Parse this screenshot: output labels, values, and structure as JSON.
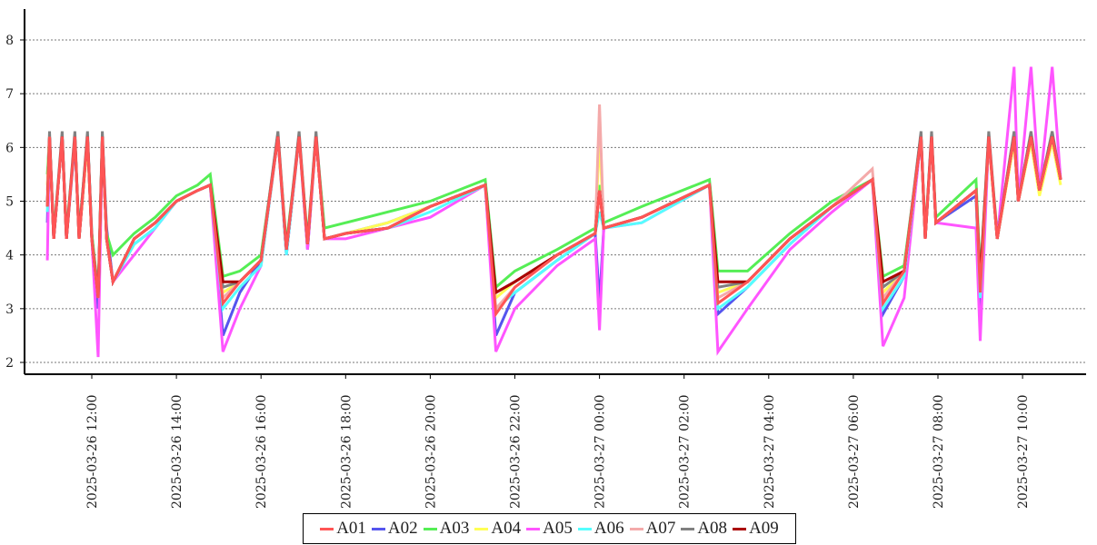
{
  "chart_data": {
    "type": "line",
    "title": "",
    "xlabel": "",
    "ylabel": "",
    "ylim": [
      1.8,
      8.6
    ],
    "yticks": [
      2,
      3,
      4,
      5,
      6,
      7,
      8
    ],
    "grid": "horizontal dotted",
    "legend_placement": "bottom-center",
    "x_unit": "hours since 2025-03-26 00:00",
    "xticks": [
      {
        "h": 12,
        "label": "2025-03-26 12:00"
      },
      {
        "h": 14,
        "label": "2025-03-26 14:00"
      },
      {
        "h": 16,
        "label": "2025-03-26 16:00"
      },
      {
        "h": 18,
        "label": "2025-03-26 18:00"
      },
      {
        "h": 20,
        "label": "2025-03-26 20:00"
      },
      {
        "h": 22,
        "label": "2025-03-26 22:00"
      },
      {
        "h": 24,
        "label": "2025-03-27 00:00"
      },
      {
        "h": 26,
        "label": "2025-03-27 02:00"
      },
      {
        "h": 28,
        "label": "2025-03-27 04:00"
      },
      {
        "h": 30,
        "label": "2025-03-27 06:00"
      },
      {
        "h": 32,
        "label": "2025-03-27 08:00"
      },
      {
        "h": 34,
        "label": "2025-03-27 10:00"
      }
    ],
    "x": [
      10.95,
      11.0,
      11.1,
      11.3,
      11.4,
      11.6,
      11.7,
      11.9,
      12.0,
      12.15,
      12.25,
      12.35,
      12.5,
      13.0,
      13.5,
      14.0,
      14.5,
      14.8,
      15.1,
      15.5,
      16.0,
      16.4,
      16.6,
      16.9,
      17.1,
      17.3,
      17.5,
      18.0,
      19.0,
      20.0,
      21.3,
      21.55,
      22.0,
      23.0,
      23.9,
      24.0,
      24.1,
      25.0,
      26.6,
      26.8,
      27.5,
      28.5,
      29.5,
      30.45,
      30.7,
      31.2,
      31.6,
      31.7,
      31.85,
      31.95,
      32.9,
      33.0,
      33.2,
      33.4,
      33.8,
      33.9,
      34.2,
      34.4,
      34.7,
      34.9
    ],
    "series": [
      {
        "name": "A02",
        "color": "#5555ee",
        "values": [
          4.6,
          6.2,
          4.3,
          6.2,
          4.3,
          6.1,
          4.4,
          6.2,
          4.4,
          3.0,
          6.2,
          4.5,
          3.5,
          4.2,
          4.5,
          5.0,
          5.2,
          5.3,
          2.5,
          3.3,
          3.9,
          6.2,
          4.0,
          6.2,
          4.1,
          6.2,
          4.3,
          4.4,
          4.6,
          4.9,
          5.3,
          2.5,
          3.3,
          3.9,
          4.4,
          3.1,
          4.5,
          4.7,
          5.3,
          2.9,
          3.4,
          4.2,
          4.9,
          5.4,
          2.9,
          3.6,
          6.2,
          4.3,
          6.2,
          4.6,
          5.1,
          3.0,
          6.2,
          4.3,
          6.2,
          5.0,
          6.2,
          5.2,
          6.2,
          5.4
        ]
      },
      {
        "name": "A03",
        "color": "#55ee55",
        "values": [
          5.5,
          6.2,
          4.4,
          6.2,
          4.4,
          6.2,
          4.4,
          6.2,
          4.4,
          3.3,
          6.2,
          4.4,
          4.0,
          4.4,
          4.7,
          5.1,
          5.3,
          5.5,
          3.6,
          3.7,
          4.0,
          6.2,
          4.2,
          6.2,
          4.3,
          6.2,
          4.5,
          4.6,
          4.8,
          5.0,
          5.4,
          3.4,
          3.7,
          4.1,
          4.5,
          5.3,
          4.6,
          4.9,
          5.4,
          3.7,
          3.7,
          4.4,
          5.0,
          5.4,
          3.6,
          3.8,
          6.2,
          4.4,
          6.2,
          4.7,
          5.4,
          3.6,
          6.2,
          4.4,
          6.2,
          5.1,
          6.2,
          5.3,
          6.2,
          5.4
        ]
      },
      {
        "name": "A04",
        "color": "#ffff55",
        "values": [
          5.3,
          6.2,
          4.3,
          6.2,
          4.3,
          6.2,
          4.3,
          6.1,
          4.3,
          3.2,
          6.2,
          4.3,
          3.5,
          4.3,
          4.6,
          5.0,
          5.2,
          5.3,
          3.3,
          3.5,
          3.9,
          6.2,
          4.1,
          6.2,
          4.2,
          6.2,
          4.3,
          4.4,
          4.6,
          4.9,
          5.3,
          3.2,
          3.5,
          4.0,
          4.4,
          6.2,
          4.5,
          4.7,
          5.3,
          3.3,
          3.5,
          4.3,
          4.9,
          5.4,
          3.3,
          3.7,
          6.2,
          4.3,
          6.2,
          4.6,
          5.2,
          3.4,
          6.1,
          4.3,
          6.1,
          5.0,
          6.1,
          5.1,
          6.1,
          5.3
        ]
      },
      {
        "name": "A05",
        "color": "#ff55ff",
        "values": [
          3.9,
          6.2,
          4.3,
          6.2,
          4.3,
          6.2,
          4.3,
          6.2,
          4.3,
          2.1,
          6.2,
          4.3,
          3.5,
          4.0,
          4.5,
          5.0,
          5.2,
          5.3,
          2.2,
          3.0,
          3.8,
          6.2,
          4.0,
          6.2,
          4.1,
          6.2,
          4.3,
          4.3,
          4.5,
          4.7,
          5.3,
          2.2,
          3.0,
          3.8,
          4.3,
          2.6,
          4.5,
          4.6,
          5.3,
          2.2,
          3.0,
          4.1,
          4.8,
          5.4,
          2.3,
          3.2,
          6.2,
          4.3,
          6.2,
          4.6,
          4.5,
          2.4,
          6.2,
          4.3,
          7.5,
          5.0,
          7.5,
          5.2,
          7.5,
          5.4
        ]
      },
      {
        "name": "A06",
        "color": "#55ffff",
        "values": [
          4.8,
          6.2,
          4.3,
          6.2,
          4.3,
          6.2,
          4.3,
          6.2,
          4.3,
          3.2,
          6.2,
          4.3,
          3.5,
          4.2,
          4.5,
          5.0,
          5.2,
          5.3,
          3.0,
          3.4,
          3.8,
          6.2,
          4.0,
          6.2,
          4.2,
          6.2,
          4.3,
          4.4,
          4.5,
          4.8,
          5.3,
          3.0,
          3.3,
          3.9,
          4.4,
          4.8,
          4.5,
          4.6,
          5.3,
          3.0,
          3.4,
          4.2,
          4.9,
          5.4,
          3.0,
          3.6,
          6.2,
          4.3,
          6.2,
          4.6,
          5.2,
          3.2,
          6.2,
          4.3,
          6.2,
          5.0,
          6.2,
          5.2,
          6.2,
          5.4
        ]
      },
      {
        "name": "A07",
        "color": "#f4aaaa",
        "values": [
          5.2,
          6.2,
          4.3,
          6.2,
          4.3,
          6.2,
          4.3,
          6.2,
          4.3,
          3.2,
          6.2,
          4.3,
          3.5,
          4.3,
          4.6,
          5.0,
          5.2,
          5.3,
          3.2,
          3.5,
          3.9,
          6.2,
          4.1,
          6.2,
          4.2,
          6.2,
          4.3,
          4.4,
          4.5,
          4.9,
          5.3,
          3.0,
          3.4,
          4.0,
          4.4,
          6.8,
          4.5,
          4.7,
          5.3,
          3.2,
          3.5,
          4.3,
          4.9,
          5.6,
          3.2,
          3.7,
          6.2,
          4.3,
          6.2,
          4.6,
          5.2,
          3.4,
          6.2,
          4.3,
          6.2,
          5.0,
          6.2,
          5.2,
          6.2,
          5.4
        ]
      },
      {
        "name": "A08",
        "color": "#808080",
        "values": [
          5.0,
          6.3,
          4.3,
          6.3,
          4.3,
          6.3,
          4.3,
          6.3,
          4.3,
          3.3,
          6.3,
          4.3,
          3.5,
          4.3,
          4.6,
          5.0,
          5.2,
          5.3,
          3.4,
          3.5,
          3.9,
          6.3,
          4.1,
          6.3,
          4.2,
          6.3,
          4.3,
          4.4,
          4.5,
          4.9,
          5.3,
          3.3,
          3.5,
          4.0,
          4.4,
          5.2,
          4.5,
          4.7,
          5.3,
          3.4,
          3.5,
          4.3,
          4.9,
          5.4,
          3.4,
          3.7,
          6.3,
          4.3,
          6.3,
          4.6,
          5.2,
          3.5,
          6.3,
          4.3,
          6.3,
          5.0,
          6.3,
          5.2,
          6.3,
          5.4
        ]
      },
      {
        "name": "A09",
        "color": "#aa0000",
        "values": [
          4.9,
          6.2,
          4.3,
          6.2,
          4.3,
          6.2,
          4.3,
          6.2,
          4.3,
          3.2,
          6.2,
          4.3,
          3.5,
          4.3,
          4.6,
          5.0,
          5.2,
          5.3,
          3.5,
          3.5,
          3.9,
          6.2,
          4.1,
          6.2,
          4.2,
          6.2,
          4.3,
          4.4,
          4.5,
          4.9,
          5.3,
          3.3,
          3.5,
          4.0,
          4.4,
          5.2,
          4.5,
          4.7,
          5.3,
          3.5,
          3.5,
          4.3,
          4.9,
          5.4,
          3.5,
          3.7,
          6.2,
          4.3,
          6.2,
          4.6,
          5.2,
          3.5,
          6.2,
          4.3,
          6.2,
          5.0,
          6.2,
          5.2,
          6.2,
          5.4
        ]
      },
      {
        "name": "A01",
        "color": "#ff5555",
        "values": [
          4.9,
          6.2,
          4.3,
          6.2,
          4.3,
          6.2,
          4.3,
          6.2,
          4.3,
          3.2,
          6.2,
          4.3,
          3.5,
          4.3,
          4.6,
          5.0,
          5.2,
          5.3,
          3.1,
          3.5,
          3.9,
          6.2,
          4.1,
          6.2,
          4.2,
          6.2,
          4.3,
          4.4,
          4.5,
          4.9,
          5.3,
          2.9,
          3.4,
          4.0,
          4.4,
          5.2,
          4.5,
          4.7,
          5.3,
          3.1,
          3.5,
          4.3,
          4.9,
          5.4,
          3.1,
          3.7,
          6.2,
          4.3,
          6.2,
          4.6,
          5.2,
          3.3,
          6.2,
          4.3,
          6.2,
          5.0,
          6.2,
          5.2,
          6.2,
          5.4
        ]
      }
    ],
    "legend": [
      {
        "name": "A01",
        "color": "#ff5555"
      },
      {
        "name": "A02",
        "color": "#5555ee"
      },
      {
        "name": "A03",
        "color": "#55ee55"
      },
      {
        "name": "A04",
        "color": "#ffff55"
      },
      {
        "name": "A05",
        "color": "#ff55ff"
      },
      {
        "name": "A06",
        "color": "#55ffff"
      },
      {
        "name": "A07",
        "color": "#f4aaaa"
      },
      {
        "name": "A08",
        "color": "#808080"
      },
      {
        "name": "A09",
        "color": "#aa0000"
      }
    ]
  }
}
